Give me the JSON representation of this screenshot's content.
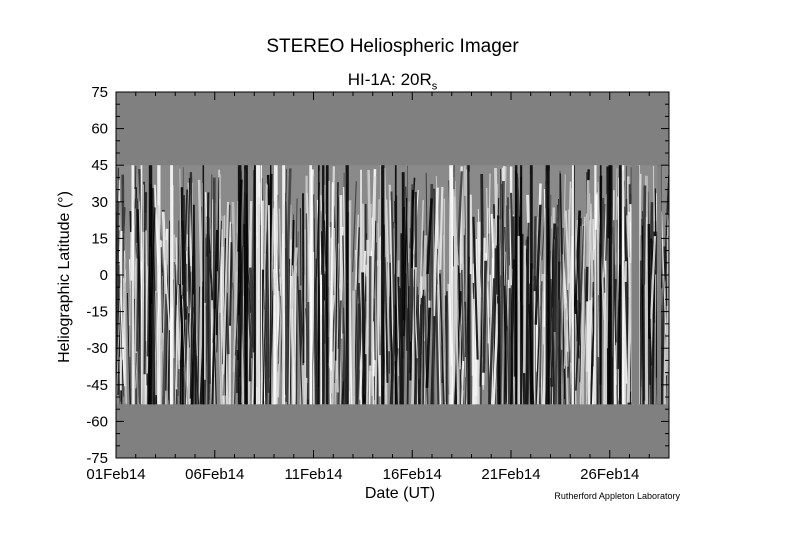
{
  "chart_data": {
    "type": "heatmap",
    "title": "STEREO Heliospheric Imager",
    "subtitle_main": "HI-1A: 20R",
    "subtitle_sub": "s",
    "xlabel": "Date (UT)",
    "ylabel": "Heliographic Latitude (°)",
    "credit": "Rutherford Appleton Laboratory",
    "x_tick_labels": [
      "01Feb14",
      "06Feb14",
      "11Feb14",
      "16Feb14",
      "21Feb14",
      "26Feb14"
    ],
    "x_tick_days": [
      0,
      5,
      10,
      15,
      20,
      25
    ],
    "xlim_days": [
      0,
      28
    ],
    "y_ticks": [
      75,
      60,
      45,
      30,
      15,
      0,
      -15,
      -30,
      -45,
      -60,
      -75
    ],
    "ylim": [
      -75,
      75
    ],
    "coverage_lat_range": [
      -53,
      45
    ],
    "data_gaps_days": [
      [
        26.1,
        26.5
      ],
      [
        27.4,
        27.6
      ]
    ],
    "colors": {
      "background_gray": "#808080",
      "stripe_dark": "#000000",
      "stripe_light": "#ffffff"
    }
  }
}
